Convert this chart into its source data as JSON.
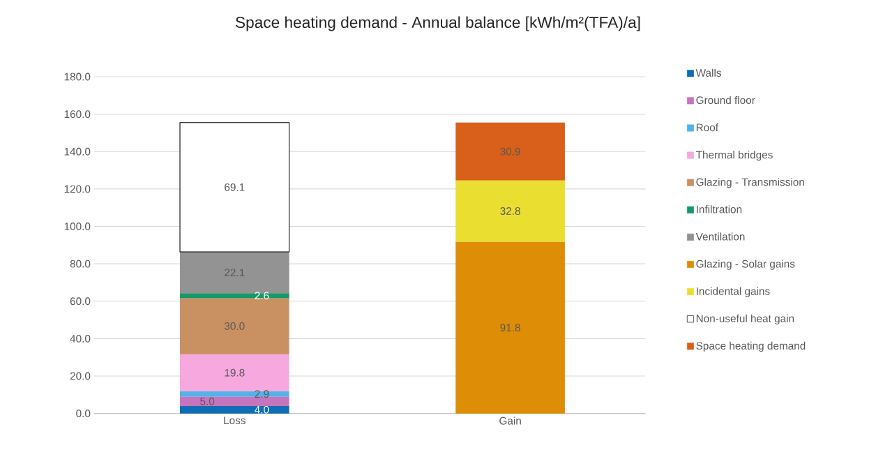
{
  "chart_data": {
    "type": "bar",
    "title": "Space heating demand - Annual balance [kWh/m²(TFA)/a]",
    "categories": [
      "Loss",
      "Gain"
    ],
    "stacked": true,
    "grid": "y",
    "legend": "right",
    "ylim": [
      0,
      180
    ],
    "yticks": [
      {
        "value": 0,
        "label": "0.0"
      },
      {
        "value": 20,
        "label": "20.0"
      },
      {
        "value": 40,
        "label": "40.0"
      },
      {
        "value": 60,
        "label": "60.0"
      },
      {
        "value": 80,
        "label": "80.0"
      },
      {
        "value": 100,
        "label": "100.0"
      },
      {
        "value": 120,
        "label": "120.0"
      },
      {
        "value": 140,
        "label": "140.0"
      },
      {
        "value": 160,
        "label": "160.0"
      },
      {
        "value": 180,
        "label": "180.0"
      }
    ],
    "series": [
      {
        "name": "Walls",
        "color": "#0f6db5",
        "values": [
          4.0,
          null
        ],
        "value_labels": [
          "4.0",
          null
        ]
      },
      {
        "name": "Ground floor",
        "color": "#c774bf",
        "values": [
          5.0,
          null
        ],
        "value_labels": [
          "5.0",
          null
        ]
      },
      {
        "name": "Roof",
        "color": "#53b2e8",
        "values": [
          2.9,
          null
        ],
        "value_labels": [
          "2.9",
          null
        ]
      },
      {
        "name": "Thermal bridges",
        "color": "#f6a8df",
        "values": [
          19.8,
          null
        ],
        "value_labels": [
          "19.8",
          null
        ]
      },
      {
        "name": "Glazing - Transmission",
        "color": "#c99162",
        "values": [
          30.0,
          null
        ],
        "value_labels": [
          "30.0",
          null
        ]
      },
      {
        "name": "Infiltration",
        "color": "#13996a",
        "values": [
          2.6,
          null
        ],
        "value_labels": [
          "2.6",
          null
        ]
      },
      {
        "name": "Ventilation",
        "color": "#939393",
        "values": [
          22.1,
          null
        ],
        "value_labels": [
          "22.1",
          null
        ]
      },
      {
        "name": "Glazing - Solar gains",
        "color": "#de8d06",
        "values": [
          null,
          91.8
        ],
        "value_labels": [
          null,
          "91.8"
        ]
      },
      {
        "name": "Incidental gains",
        "color": "#eadf30",
        "values": [
          null,
          32.8
        ],
        "value_labels": [
          null,
          "32.8"
        ]
      },
      {
        "name": "Non-useful heat gain",
        "color": "#ffffff",
        "values": [
          69.1,
          null
        ],
        "value_labels": [
          "69.1",
          null
        ]
      },
      {
        "name": "Space heating demand",
        "color": "#d9601a",
        "values": [
          null,
          30.9
        ],
        "value_labels": [
          null,
          "30.9"
        ]
      }
    ]
  }
}
